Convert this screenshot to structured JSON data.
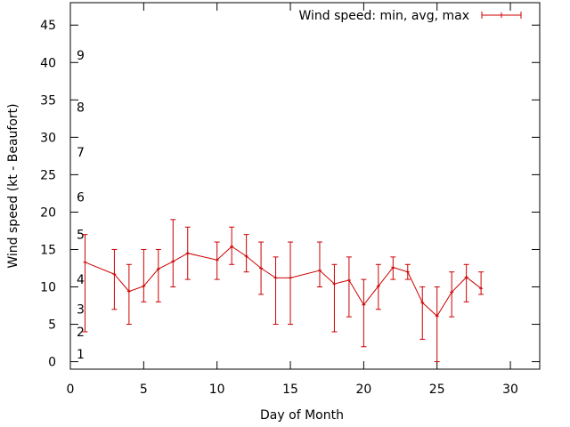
{
  "chart_data": {
    "type": "line",
    "xlabel": "Day of Month",
    "ylabel": "Wind speed (kt - Beaufort)",
    "xlim": [
      0,
      32
    ],
    "ylim": [
      -1,
      48
    ],
    "xticks": [
      0,
      5,
      10,
      15,
      20,
      25,
      30
    ],
    "yticks": [
      0,
      5,
      10,
      15,
      20,
      25,
      30,
      35,
      40,
      45
    ],
    "beaufort_labels": [
      {
        "label": "1",
        "kt": 1
      },
      {
        "label": "2",
        "kt": 4
      },
      {
        "label": "3",
        "kt": 7
      },
      {
        "label": "4",
        "kt": 11
      },
      {
        "label": "5",
        "kt": 17
      },
      {
        "label": "6",
        "kt": 22
      },
      {
        "label": "7",
        "kt": 28
      },
      {
        "label": "8",
        "kt": 34
      },
      {
        "label": "9",
        "kt": 41
      }
    ],
    "legend_position": "top-right",
    "series": [
      {
        "name": "Wind speed: min, avg, max",
        "color": "#cc0000",
        "points": [
          {
            "x": 1,
            "avg": 13.3,
            "min": 4,
            "max": 17
          },
          {
            "x": 3,
            "avg": 11.7,
            "min": 7,
            "max": 15
          },
          {
            "x": 4,
            "avg": 9.4,
            "min": 5,
            "max": 13
          },
          {
            "x": 5,
            "avg": 10.1,
            "min": 8,
            "max": 15
          },
          {
            "x": 6,
            "avg": 12.4,
            "min": 8,
            "max": 15
          },
          {
            "x": 7,
            "avg": 13.4,
            "min": 10,
            "max": 19
          },
          {
            "x": 8,
            "avg": 14.5,
            "min": 11,
            "max": 18
          },
          {
            "x": 10,
            "avg": 13.6,
            "min": 11,
            "max": 16
          },
          {
            "x": 11,
            "avg": 15.4,
            "min": 13,
            "max": 18
          },
          {
            "x": 12,
            "avg": 14.1,
            "min": 12,
            "max": 17
          },
          {
            "x": 13,
            "avg": 12.5,
            "min": 9,
            "max": 16
          },
          {
            "x": 14,
            "avg": 11.2,
            "min": 5,
            "max": 14
          },
          {
            "x": 15,
            "avg": 11.2,
            "min": 5,
            "max": 16
          },
          {
            "x": 17,
            "avg": 12.2,
            "min": 10,
            "max": 16
          },
          {
            "x": 18,
            "avg": 10.4,
            "min": 4,
            "max": 13
          },
          {
            "x": 19,
            "avg": 10.9,
            "min": 6,
            "max": 14
          },
          {
            "x": 20,
            "avg": 7.6,
            "min": 2,
            "max": 11
          },
          {
            "x": 21,
            "avg": 10.1,
            "min": 7,
            "max": 13
          },
          {
            "x": 22,
            "avg": 12.6,
            "min": 11,
            "max": 14
          },
          {
            "x": 23,
            "avg": 12.0,
            "min": 11,
            "max": 13
          },
          {
            "x": 24,
            "avg": 7.9,
            "min": 3,
            "max": 10
          },
          {
            "x": 25,
            "avg": 6.1,
            "min": 0,
            "max": 10
          },
          {
            "x": 26,
            "avg": 9.3,
            "min": 6,
            "max": 12
          },
          {
            "x": 27,
            "avg": 11.3,
            "min": 8,
            "max": 13
          },
          {
            "x": 28,
            "avg": 9.8,
            "min": 9,
            "max": 12
          }
        ]
      }
    ]
  }
}
